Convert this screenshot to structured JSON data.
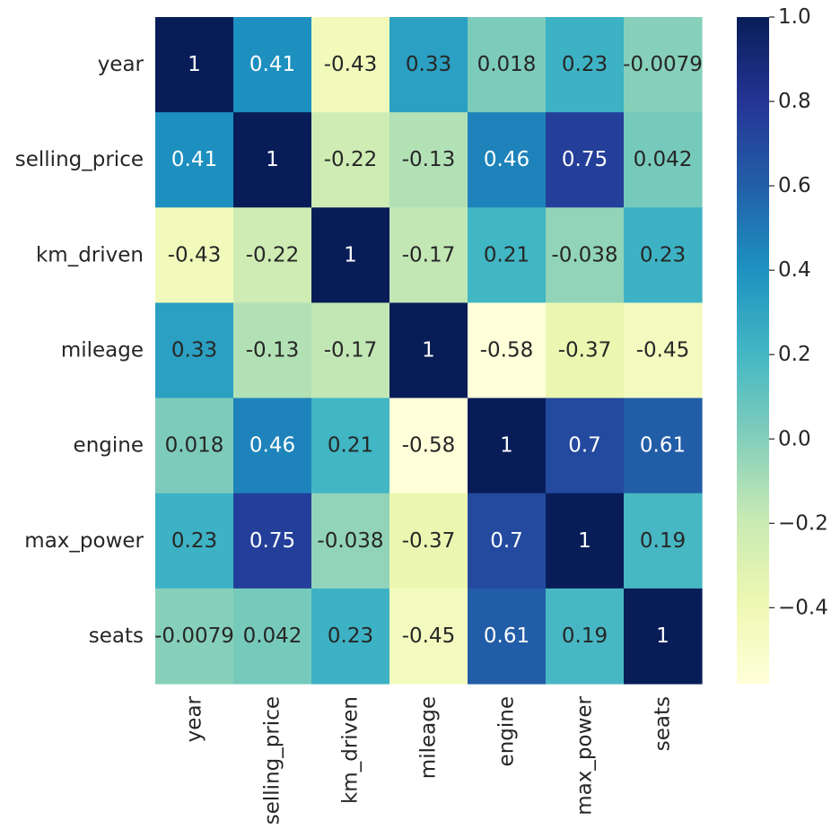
{
  "chart_data": {
    "type": "heatmap",
    "title": "",
    "xlabel": "",
    "ylabel": "",
    "x_labels": [
      "year",
      "selling_price",
      "km_driven",
      "mileage",
      "engine",
      "max_power",
      "seats"
    ],
    "y_labels": [
      "year",
      "selling_price",
      "km_driven",
      "mileage",
      "engine",
      "max_power",
      "seats"
    ],
    "values": [
      [
        1,
        0.41,
        -0.43,
        0.33,
        0.018,
        0.23,
        -0.0079
      ],
      [
        0.41,
        1,
        -0.22,
        -0.13,
        0.46,
        0.75,
        0.042
      ],
      [
        -0.43,
        -0.22,
        1,
        -0.17,
        0.21,
        -0.038,
        0.23
      ],
      [
        0.33,
        -0.13,
        -0.17,
        1,
        -0.58,
        -0.37,
        -0.45
      ],
      [
        0.018,
        0.46,
        0.21,
        -0.58,
        1,
        0.7,
        0.61
      ],
      [
        0.23,
        0.75,
        -0.038,
        -0.37,
        0.7,
        1,
        0.19
      ],
      [
        -0.0079,
        0.042,
        0.23,
        -0.45,
        0.61,
        0.19,
        1
      ]
    ],
    "cell_labels": [
      [
        "1",
        "0.41",
        "-0.43",
        "0.33",
        "0.018",
        "0.23",
        "-0.0079"
      ],
      [
        "0.41",
        "1",
        "-0.22",
        "-0.13",
        "0.46",
        "0.75",
        "0.042"
      ],
      [
        "-0.43",
        "-0.22",
        "1",
        "-0.17",
        "0.21",
        "-0.038",
        "0.23"
      ],
      [
        "0.33",
        "-0.13",
        "-0.17",
        "1",
        "-0.58",
        "-0.37",
        "-0.45"
      ],
      [
        "0.018",
        "0.46",
        "0.21",
        "-0.58",
        "1",
        "0.7",
        "0.61"
      ],
      [
        "0.23",
        "0.75",
        "-0.038",
        "-0.37",
        "0.7",
        "1",
        "0.19"
      ],
      [
        "-0.0079",
        "0.042",
        "0.23",
        "-0.45",
        "0.61",
        "0.19",
        "1"
      ]
    ],
    "colormap": "YlGnBu",
    "colorbar": {
      "vmin": -0.58,
      "vmax": 1.0,
      "ticks": [
        1.0,
        0.8,
        0.6,
        0.4,
        0.2,
        0.0,
        -0.2,
        -0.4
      ],
      "tick_labels": [
        "1.0",
        "0.8",
        "0.6",
        "0.4",
        "0.2",
        "0.0",
        "−0.2",
        "−0.4"
      ],
      "placement": "right"
    },
    "grid": false
  }
}
